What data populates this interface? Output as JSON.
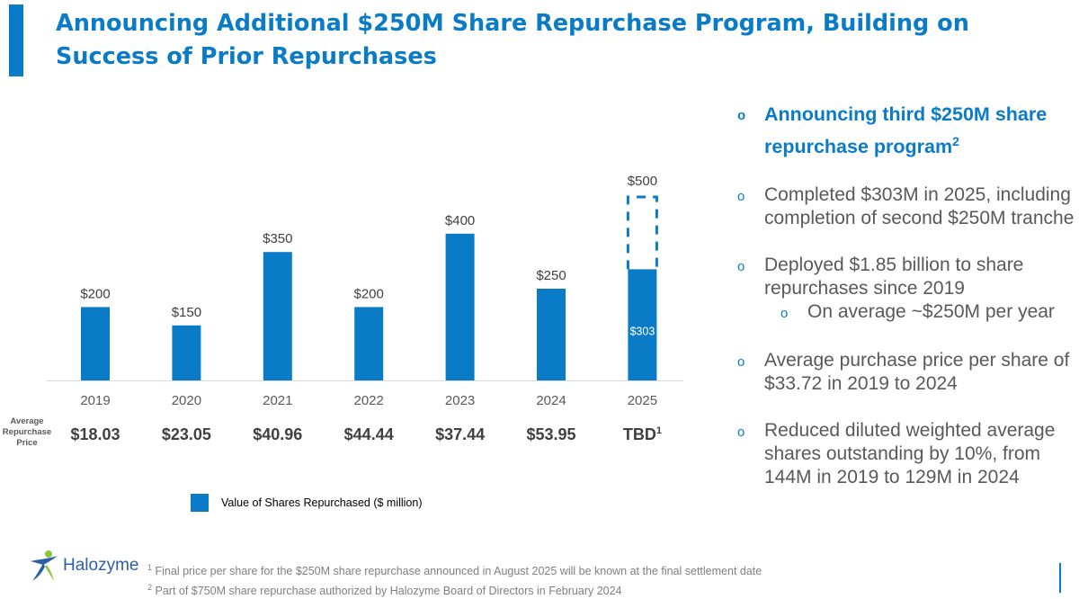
{
  "slide": {
    "title": "Announcing Additional $250M Share Repurchase Program, Building on Success of Prior Repurchases"
  },
  "colors": {
    "accent": "#0a7cc7",
    "text": "#404040",
    "muted": "#808080"
  },
  "chart_data": {
    "type": "bar",
    "categories": [
      "2019",
      "2020",
      "2021",
      "2022",
      "2023",
      "2024",
      "2025"
    ],
    "series": [
      {
        "name": "Value of Shares Repurchased ($ million)",
        "values": [
          200,
          150,
          350,
          200,
          400,
          250,
          303
        ]
      }
    ],
    "value_labels": [
      "$200",
      "$150",
      "$350",
      "$200",
      "$400",
      "$250",
      "$303"
    ],
    "target": {
      "category": "2025",
      "value": 500,
      "label": "$500",
      "style": "dashed-outline"
    },
    "price_row": {
      "label": "Average Repurchase Price",
      "values": [
        "$18.03",
        "$23.05",
        "$40.96",
        "$44.44",
        "$37.44",
        "$53.95",
        "TBD"
      ],
      "last_superscript": "1"
    },
    "ylim": [
      0,
      500
    ],
    "grid": false,
    "legend_position": "bottom"
  },
  "bullets": [
    {
      "kind": "headline",
      "text": "Announcing third $250M share repurchase program",
      "sup": "2"
    },
    {
      "kind": "normal",
      "text": "Completed $303M in 2025, including completion of second $250M tranche"
    },
    {
      "kind": "normal",
      "text": "Deployed $1.85 billion to share repurchases since 2019"
    },
    {
      "kind": "sub",
      "text": "On average ~$250M per year"
    },
    {
      "kind": "normal",
      "text": "Average purchase price per share of $33.72 in 2019 to 2024"
    },
    {
      "kind": "normal",
      "text": "Reduced diluted weighted average shares outstanding by 10%, from 144M in 2019 to 129M in 2024"
    }
  ],
  "bullet_marker": "o",
  "footnotes": [
    {
      "num": "1",
      "text": "Final price per share for the $250M share repurchase announced in August 2025 will be known at the final settlement date"
    },
    {
      "num": "2",
      "text": "Part of $750M share repurchase authorized by Halozyme Board of Directors in February 2024"
    }
  ],
  "logo": {
    "text": "Halozyme",
    "icon": "halozyme-figure-logo"
  }
}
